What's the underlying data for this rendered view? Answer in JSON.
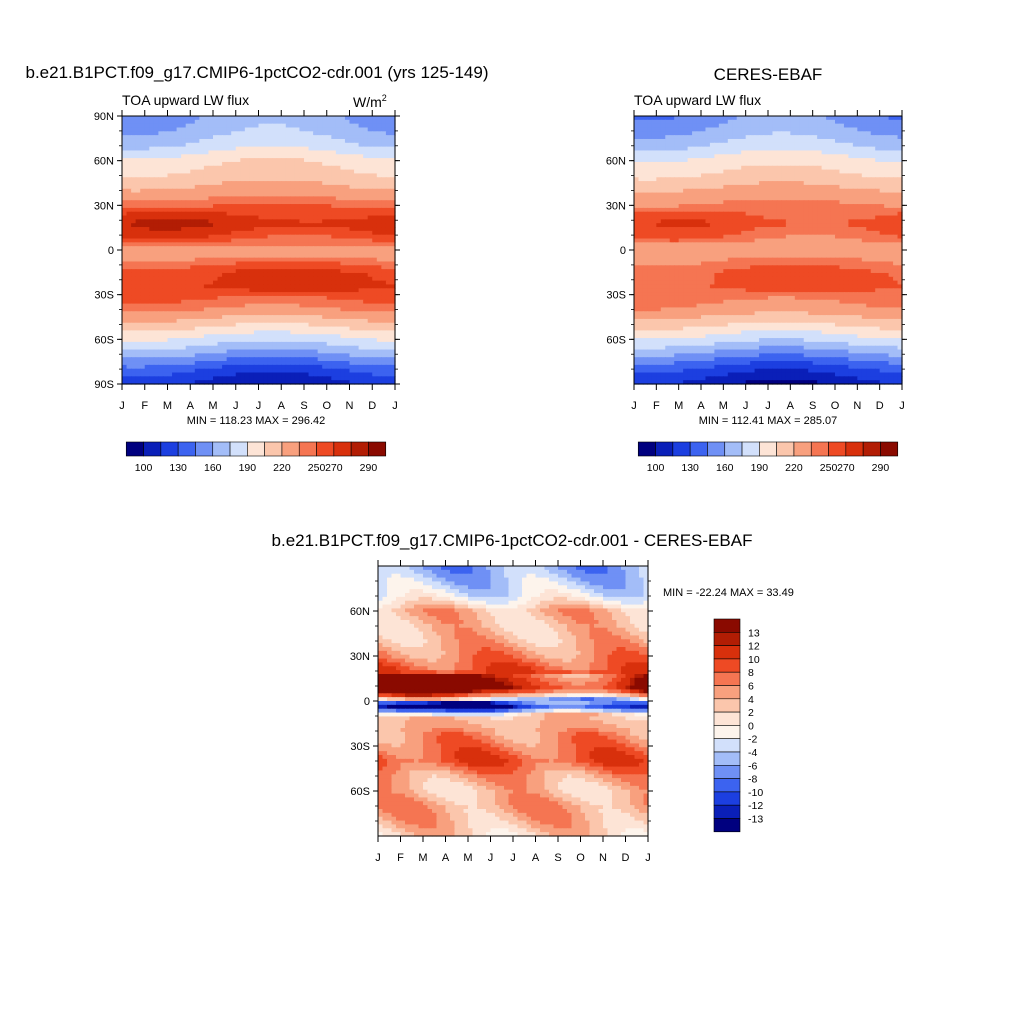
{
  "chart_data": [
    {
      "type": "heatmap",
      "title": "b.e21.B1PCT.f09_g17.CMIP6-1pctCO2-cdr.001 (yrs 125-149)",
      "subtitle_left": "TOA upward LW flux",
      "units_label": "W/m",
      "units_sup": "2",
      "months": [
        "J",
        "F",
        "M",
        "A",
        "M",
        "J",
        "J",
        "A",
        "S",
        "O",
        "N",
        "D",
        "J"
      ],
      "lat_ticks": [
        {
          "label": "90N",
          "lat": 90
        },
        {
          "label": "60N",
          "lat": 60
        },
        {
          "label": "30N",
          "lat": 30
        },
        {
          "label": "0",
          "lat": 0
        },
        {
          "label": "30S",
          "lat": -30
        },
        {
          "label": "60S",
          "lat": -60
        },
        {
          "label": "90S",
          "lat": -90
        }
      ],
      "stats": "MIN = 118.23   MAX = 296.42",
      "min": 118.23,
      "max": 296.42,
      "colorbar_ticks": [
        "100",
        "130",
        "160",
        "190",
        "220",
        "250",
        "270",
        "290"
      ],
      "profile": [
        [
          -90,
          125
        ],
        [
          -80,
          145
        ],
        [
          -70,
          175
        ],
        [
          -60,
          200
        ],
        [
          -50,
          225
        ],
        [
          -40,
          250
        ],
        [
          -25,
          272
        ],
        [
          -15,
          270
        ],
        [
          -5,
          250
        ],
        [
          0,
          245
        ],
        [
          10,
          268
        ],
        [
          18,
          278
        ],
        [
          28,
          262
        ],
        [
          40,
          240
        ],
        [
          50,
          225
        ],
        [
          60,
          215
        ],
        [
          70,
          195
        ],
        [
          80,
          182
        ],
        [
          90,
          175
        ]
      ],
      "seasonal_factor": 1.0,
      "bias": 0
    },
    {
      "type": "heatmap",
      "title": "CERES-EBAF",
      "subtitle_left": "TOA upward LW flux",
      "months": [
        "J",
        "F",
        "M",
        "A",
        "M",
        "J",
        "J",
        "A",
        "S",
        "O",
        "N",
        "D",
        "J"
      ],
      "lat_ticks": [
        {
          "label": "60N",
          "lat": 60
        },
        {
          "label": "30N",
          "lat": 30
        },
        {
          "label": "0",
          "lat": 0
        },
        {
          "label": "30S",
          "lat": -30
        },
        {
          "label": "60S",
          "lat": -60
        }
      ],
      "stats": "MIN = 112.41   MAX = 285.07",
      "min": 112.41,
      "max": 285.07,
      "colorbar_ticks": [
        "100",
        "130",
        "160",
        "190",
        "220",
        "250",
        "270",
        "290"
      ],
      "profile": [
        [
          -90,
          120
        ],
        [
          -80,
          140
        ],
        [
          -70,
          170
        ],
        [
          -60,
          198
        ],
        [
          -50,
          222
        ],
        [
          -40,
          245
        ],
        [
          -25,
          262
        ],
        [
          -15,
          262
        ],
        [
          -5,
          248
        ],
        [
          0,
          242
        ],
        [
          10,
          258
        ],
        [
          18,
          266
        ],
        [
          28,
          255
        ],
        [
          40,
          238
        ],
        [
          50,
          222
        ],
        [
          60,
          210
        ],
        [
          70,
          192
        ],
        [
          80,
          178
        ],
        [
          90,
          168
        ]
      ],
      "seasonal_factor": 0.95,
      "bias": 0
    },
    {
      "type": "heatmap",
      "title": "b.e21.B1PCT.f09_g17.CMIP6-1pctCO2-cdr.001 - CERES-EBAF",
      "months": [
        "J",
        "F",
        "M",
        "A",
        "M",
        "J",
        "J",
        "A",
        "S",
        "O",
        "N",
        "D",
        "J"
      ],
      "lat_ticks": [
        {
          "label": "60N",
          "lat": 60
        },
        {
          "label": "30N",
          "lat": 30
        },
        {
          "label": "0",
          "lat": 0
        },
        {
          "label": "30S",
          "lat": -30
        },
        {
          "label": "60S",
          "lat": -60
        }
      ],
      "stats": "MIN = -22.24  MAX =  33.49",
      "min": -22.24,
      "max": 33.49,
      "colorbar_ticks": [
        "13",
        "12",
        "10",
        "8",
        "6",
        "4",
        "2",
        "0",
        "-2",
        "-4",
        "-6",
        "-8",
        "-10",
        "-12",
        "-13"
      ],
      "diff_profile": [
        [
          -90,
          2
        ],
        [
          -80,
          4
        ],
        [
          -70,
          5
        ],
        [
          -60,
          3
        ],
        [
          -50,
          5
        ],
        [
          -40,
          9
        ],
        [
          -30,
          7
        ],
        [
          -20,
          5
        ],
        [
          -10,
          3
        ],
        [
          -6,
          -8
        ],
        [
          -3,
          -14
        ],
        [
          0,
          -6
        ],
        [
          4,
          6
        ],
        [
          8,
          14
        ],
        [
          14,
          12
        ],
        [
          20,
          9
        ],
        [
          30,
          6
        ],
        [
          40,
          4
        ],
        [
          50,
          3
        ],
        [
          60,
          4
        ],
        [
          70,
          -2
        ],
        [
          78,
          -4
        ],
        [
          90,
          -6
        ]
      ]
    }
  ],
  "colors": {
    "abs_palette": [
      "#00007f",
      "#0a1fb8",
      "#1c3fe0",
      "#3c63f0",
      "#6f90f5",
      "#a3bdf8",
      "#d2e0fb",
      "#fde4d6",
      "#fbc6ac",
      "#f8a07e",
      "#f57552",
      "#ee4a24",
      "#d8300c",
      "#b21d04",
      "#8a0a00"
    ],
    "diff_palette": [
      "#8a0a00",
      "#b21d04",
      "#d8300c",
      "#ee4a24",
      "#f57552",
      "#f8a07e",
      "#fbc6ac",
      "#fde4d6",
      "#fdf4ec",
      "#d2e0fb",
      "#a3bdf8",
      "#6f90f5",
      "#3c63f0",
      "#1c3fe0",
      "#0a1fb8",
      "#00007f"
    ]
  }
}
